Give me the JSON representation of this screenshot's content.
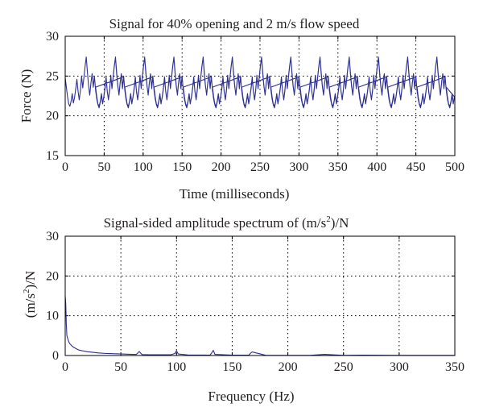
{
  "chart_data": [
    {
      "type": "line",
      "title": "Signal for 40% opening and 2 m/s flow speed",
      "xlabel": "Time (milliseconds)",
      "ylabel": "Force (N)",
      "xlim": [
        0,
        500
      ],
      "ylim": [
        15,
        30
      ],
      "xticks": [
        "0",
        "50",
        "100",
        "150",
        "200",
        "250",
        "300",
        "350",
        "400",
        "450",
        "500"
      ],
      "yticks": [
        "15",
        "20",
        "25",
        "30"
      ],
      "grid": true,
      "period": 37.5,
      "series": [
        {
          "color": "#2e3192",
          "x": [
            0,
            1.5,
            3,
            4.5,
            6,
            7.5,
            9,
            10.5,
            12,
            13.5,
            15,
            16.5,
            18,
            19.5,
            21,
            22.5,
            24,
            25.5,
            27,
            28.5,
            30,
            31.5,
            33,
            34.5,
            36,
            37.5,
            39,
            40.5,
            42,
            43.5,
            45,
            46.5,
            48,
            49.5,
            51,
            52.5,
            54,
            55.5,
            57,
            58.5,
            60,
            61.5,
            63,
            64.5,
            66,
            67.5,
            69,
            70.5,
            72,
            73.5,
            75
          ],
          "y": [
            24.8,
            23.6,
            22.4,
            21.5,
            21.2,
            21.8,
            22.8,
            21.6,
            22.3,
            23.4,
            24.6,
            23.1,
            22.0,
            23.2,
            25.0,
            23.5,
            24.8,
            26.2,
            27.4,
            25.5,
            23.8,
            22.6,
            24.1,
            25.3,
            23.6,
            25.0,
            23.2,
            22.1,
            21.4,
            21.0,
            21.7,
            22.6,
            21.5,
            22.4,
            23.5,
            24.9,
            23.0,
            22.1,
            23.3,
            25.1,
            23.4,
            24.9,
            26.3,
            27.3,
            25.3,
            23.7,
            22.7,
            24.2,
            25.2,
            23.4,
            24.9
          ]
        }
      ]
    },
    {
      "type": "line",
      "title": "Signal-sided amplitude spectrum of (m/s²)/N",
      "xlabel": "Frequency (Hz)",
      "ylabel": "(m/s²)/N",
      "xlim": [
        0,
        350
      ],
      "ylim": [
        0,
        30
      ],
      "xticks": [
        "0",
        "50",
        "100",
        "150",
        "200",
        "250",
        "300",
        "350"
      ],
      "yticks": [
        "0",
        "10",
        "20",
        "30"
      ],
      "grid": true,
      "series": [
        {
          "color": "#2e3192",
          "x": [
            0,
            0.5,
            1,
            1.5,
            2,
            3,
            4,
            5,
            6,
            8,
            10,
            12,
            15,
            20,
            25,
            30,
            35,
            40,
            45,
            50,
            55,
            60,
            64,
            66.5,
            69,
            75,
            85,
            95,
            98.5,
            100,
            101.5,
            110,
            120,
            130,
            131.5,
            133,
            134.5,
            150,
            160,
            165,
            166.5,
            168,
            180,
            200,
            220,
            233,
            250,
            267,
            300,
            350
          ],
          "y": [
            15,
            13,
            8,
            5,
            4.5,
            3.6,
            3.0,
            2.7,
            2.4,
            2.0,
            1.7,
            1.4,
            1.2,
            0.95,
            0.8,
            0.65,
            0.55,
            0.5,
            0.45,
            0.4,
            0.35,
            0.3,
            0.3,
            1.0,
            0.25,
            0.2,
            0.2,
            0.2,
            0.5,
            1.2,
            0.4,
            0.15,
            0.12,
            0.1,
            0.6,
            1.3,
            0.3,
            0.1,
            0.08,
            0.08,
            0.6,
            0.9,
            0.06,
            0.05,
            0.05,
            0.3,
            0.04,
            0.1,
            0.03,
            0.03
          ]
        }
      ]
    }
  ]
}
